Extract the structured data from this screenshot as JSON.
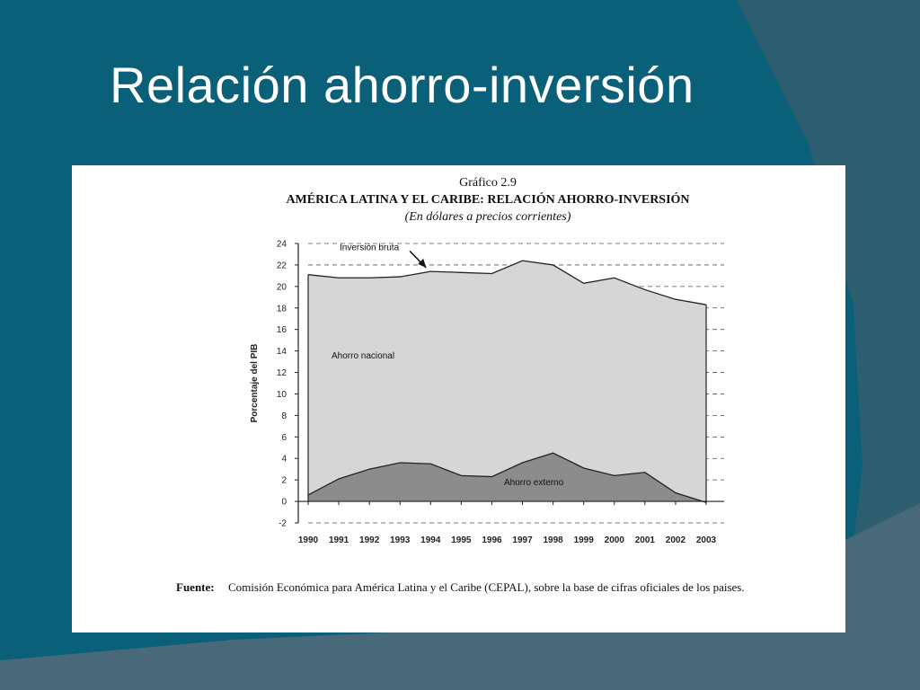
{
  "slide": {
    "title": "Relación ahorro-inversión"
  },
  "colors": {
    "background": "#0b6079",
    "accent_band": "#2e5f70",
    "panel": "#ffffff",
    "area_national": "#d6d6d6",
    "area_external": "#8c8c8c",
    "line": "#222222"
  },
  "figure": {
    "label": "Gráfico 2.9",
    "heading": "AMÉRICA LATINA Y EL CARIBE: RELACIÓN AHORRO-INVERSIÓN",
    "subheading": "(En dólares a precios corrientes)",
    "source_label": "Fuente",
    "source_sep": ":",
    "source_text": "Comisión Económica para América Latina y el Caribe (CEPAL), sobre la base de cifras oficiales de los paises."
  },
  "chart_data": {
    "type": "area",
    "ylabel": "Porcentaje del PIB",
    "xlabel": "",
    "ylim": [
      -2,
      24
    ],
    "yticks": [
      -2,
      0,
      2,
      4,
      6,
      8,
      10,
      12,
      14,
      16,
      18,
      20,
      22,
      24
    ],
    "grid": "horizontal dashed",
    "categories": [
      "1990",
      "1991",
      "1992",
      "1993",
      "1994",
      "1995",
      "1996",
      "1997",
      "1998",
      "1999",
      "2000",
      "2001",
      "2002",
      "2003"
    ],
    "series": [
      {
        "name": "Inversión bruta",
        "values": [
          21.1,
          20.8,
          20.8,
          20.9,
          21.4,
          21.3,
          21.2,
          22.4,
          22.0,
          20.3,
          20.8,
          19.7,
          18.8,
          18.3
        ]
      },
      {
        "name": "Ahorro externo",
        "values": [
          0.6,
          2.1,
          3.0,
          3.6,
          3.5,
          2.4,
          2.3,
          3.6,
          4.5,
          3.1,
          2.4,
          2.7,
          0.8,
          -0.1
        ]
      }
    ],
    "annotations": [
      {
        "text": "Inversión bruta",
        "target": "Inversión bruta",
        "arrow": true
      },
      {
        "text": "Ahorro nacional",
        "region": "between series"
      },
      {
        "text": "Ahorro externo",
        "region": "below Ahorro externo"
      }
    ]
  }
}
